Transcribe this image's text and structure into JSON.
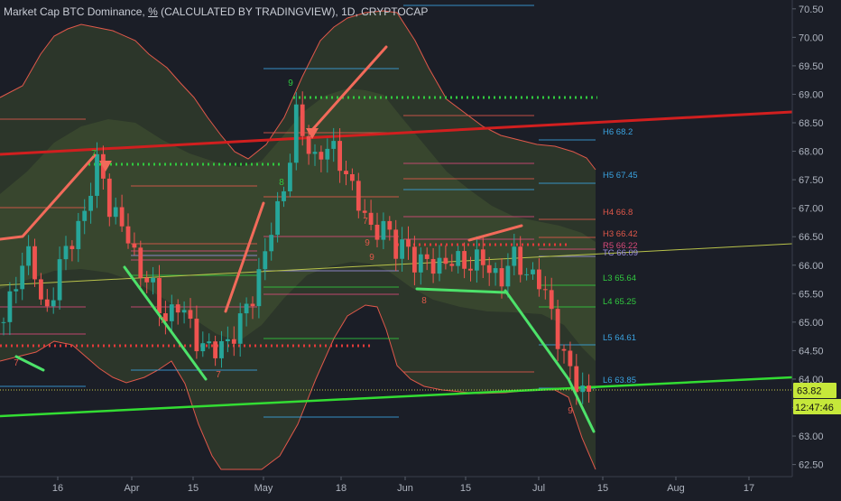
{
  "title_parts": {
    "name": "Market Cap BTC Dominance, ",
    "unit": "%",
    "rest": " (CALCULATED BY TRADINGVIEW), 1D, CRYPTOCAP"
  },
  "colors": {
    "background": "#1b1e27",
    "up_candle": "#26a69a",
    "down_candle": "#ef5350",
    "band_outer": "#e0584a",
    "band_fill": "#3a4a2e",
    "trend_red": "#d11f1f",
    "trend_green": "#33dd33",
    "trend_yellow": "#b8c24a",
    "dotted_green": "#31c93f",
    "dotted_red": "#e23a3a",
    "pivot_pink": "#d84a7a",
    "pivot_blue": "#3aa3e0",
    "price_box": "#c6e83a"
  },
  "chart_data": {
    "type": "candlestick",
    "title": "Market Cap BTC Dominance, % (CALCULATED BY TRADINGVIEW), 1D, CRYPTOCAP",
    "y_axis": {
      "ticks": [
        "70.50",
        "70.00",
        "69.50",
        "69.00",
        "68.50",
        "68.00",
        "67.50",
        "67.00",
        "66.50",
        "66.00",
        "65.50",
        "65.00",
        "64.50",
        "64.00",
        "63.50",
        "63.00",
        "62.50"
      ],
      "ylim": [
        62.45,
        70.6
      ]
    },
    "x_axis": {
      "labels": [
        "16",
        "Apr",
        "15",
        "May",
        "18",
        "Jun",
        "15",
        "Jul",
        "15",
        "Aug",
        "17"
      ]
    },
    "levels": [
      {
        "label": "H6 68.2",
        "value": 68.2,
        "color": "#3aa3e0"
      },
      {
        "label": "H5 67.45",
        "value": 67.45,
        "color": "#3aa3e0"
      },
      {
        "label": "H4 66.8",
        "value": 66.8,
        "color": "#e0584a"
      },
      {
        "label": "H3 66.42",
        "value": 66.42,
        "color": "#e0584a"
      },
      {
        "label": "R5 66.22",
        "value": 66.22,
        "color": "#d84a7a"
      },
      {
        "label": "TC 66.09",
        "value": 66.09,
        "color": "#9b8fe0"
      },
      {
        "label": "L3 65.64",
        "value": 65.64,
        "color": "#31c93f"
      },
      {
        "label": "L4 65.25",
        "value": 65.25,
        "color": "#31c93f"
      },
      {
        "label": "L5 64.61",
        "value": 64.61,
        "color": "#3aa3e0"
      },
      {
        "label": "L6 63.85",
        "value": 63.85,
        "color": "#3aa3e0"
      }
    ],
    "last_price": "63.82",
    "countdown": "12:47:46",
    "sequential_counts": [
      "7",
      "9",
      "7",
      "9",
      "7",
      "7",
      "8",
      "9",
      "8",
      "7",
      "9"
    ],
    "grid": false
  }
}
